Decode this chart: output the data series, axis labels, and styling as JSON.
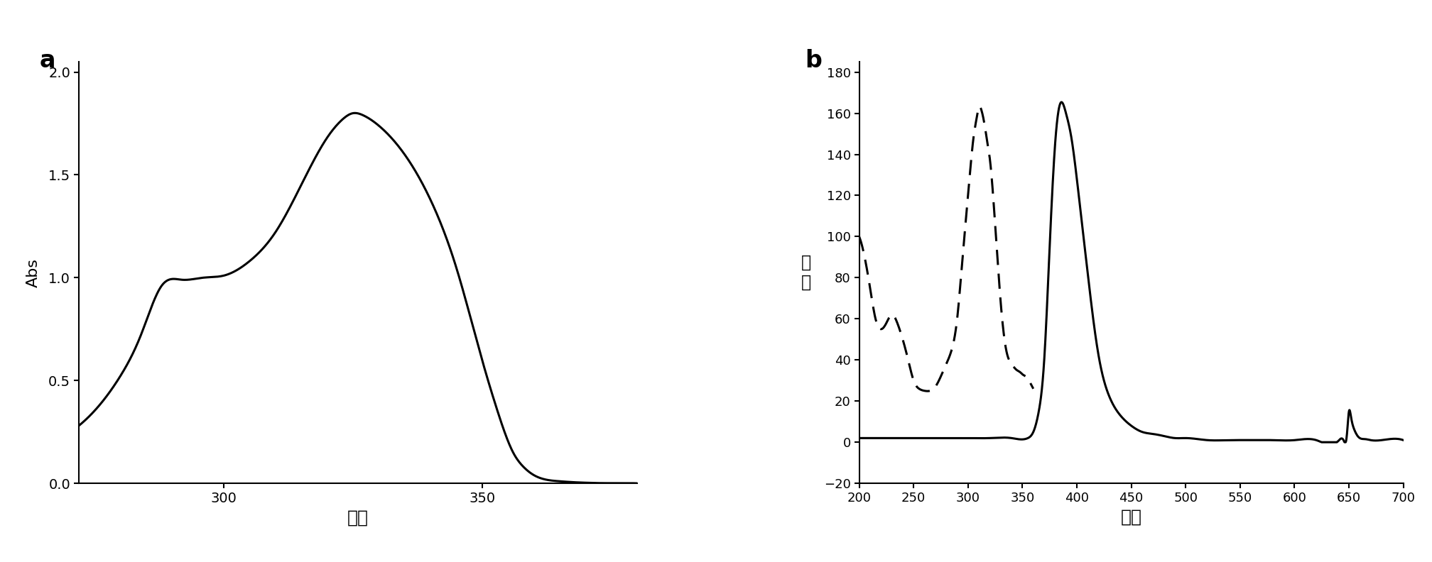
{
  "panel_a": {
    "ylabel": "Abs",
    "xlabel": "波长",
    "xlim": [
      272,
      380
    ],
    "ylim": [
      0.0,
      2.05
    ],
    "yticks": [
      0.0,
      0.5,
      1.0,
      1.5,
      2.0
    ],
    "xticks": [
      300,
      350
    ],
    "label": "a"
  },
  "panel_b": {
    "ylabel": "强\n度",
    "xlabel": "波长",
    "xlim": [
      200,
      700
    ],
    "ylim": [
      -20,
      185
    ],
    "yticks": [
      -20,
      0,
      20,
      40,
      60,
      80,
      100,
      120,
      140,
      160,
      180
    ],
    "xticks": [
      200,
      250,
      300,
      350,
      400,
      450,
      500,
      550,
      600,
      650,
      700
    ],
    "label": "b"
  },
  "background": "#ffffff",
  "line_color": "#000000"
}
